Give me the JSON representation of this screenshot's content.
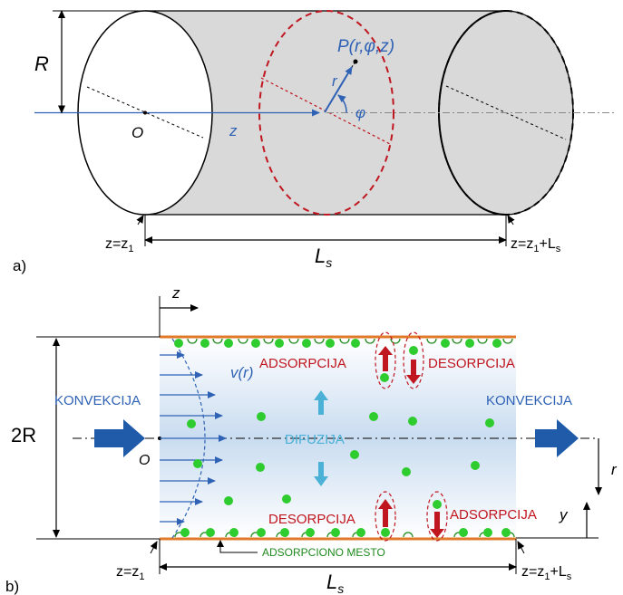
{
  "colors": {
    "blue": "#3b6fc0",
    "darkblue": "#1f5ba8",
    "red": "#c0161f",
    "darkred": "#b00000",
    "orange": "#e07a2a",
    "green": "#2ecc2e",
    "darkgreen": "#1e8a1e",
    "cyan": "#4bb1d6",
    "gray": "#d9d9d9"
  },
  "part_a": {
    "label": "a)",
    "R": "R",
    "O": "O",
    "z": "z",
    "r": "r",
    "phi": "φ",
    "point": "P(r,φ,z)",
    "z_start": "z=z",
    "z_start_sub": "1",
    "z_end": "z=z",
    "z_end_sub": "1",
    "z_end_tail": "+L",
    "z_end_tail_sub": "s",
    "L": "L",
    "L_sub": "s"
  },
  "part_b": {
    "label": "b)",
    "z": "z",
    "two_R": "2R",
    "O": "O",
    "velocity": "v(r)",
    "convection_left": "KONVEKCIJA",
    "convection_right": "KONVEKCIJA",
    "diffusion": "DIFUZIJA",
    "adsorption_top": "ADSORPCIJA",
    "desorption_top": "DESORPCIJA",
    "desorption_bottom": "DESORPCIJA",
    "adsorption_bottom": "ADSORPCIJA",
    "adsorption_site": "ADSORPCIONO MESTO",
    "r": "r",
    "y": "y",
    "z_start": "z=z",
    "z_start_sub": "1",
    "z_end": "z=z",
    "z_end_sub": "1",
    "z_end_tail": "+L",
    "z_end_tail_sub": "s",
    "L": "L",
    "L_sub": "s"
  }
}
